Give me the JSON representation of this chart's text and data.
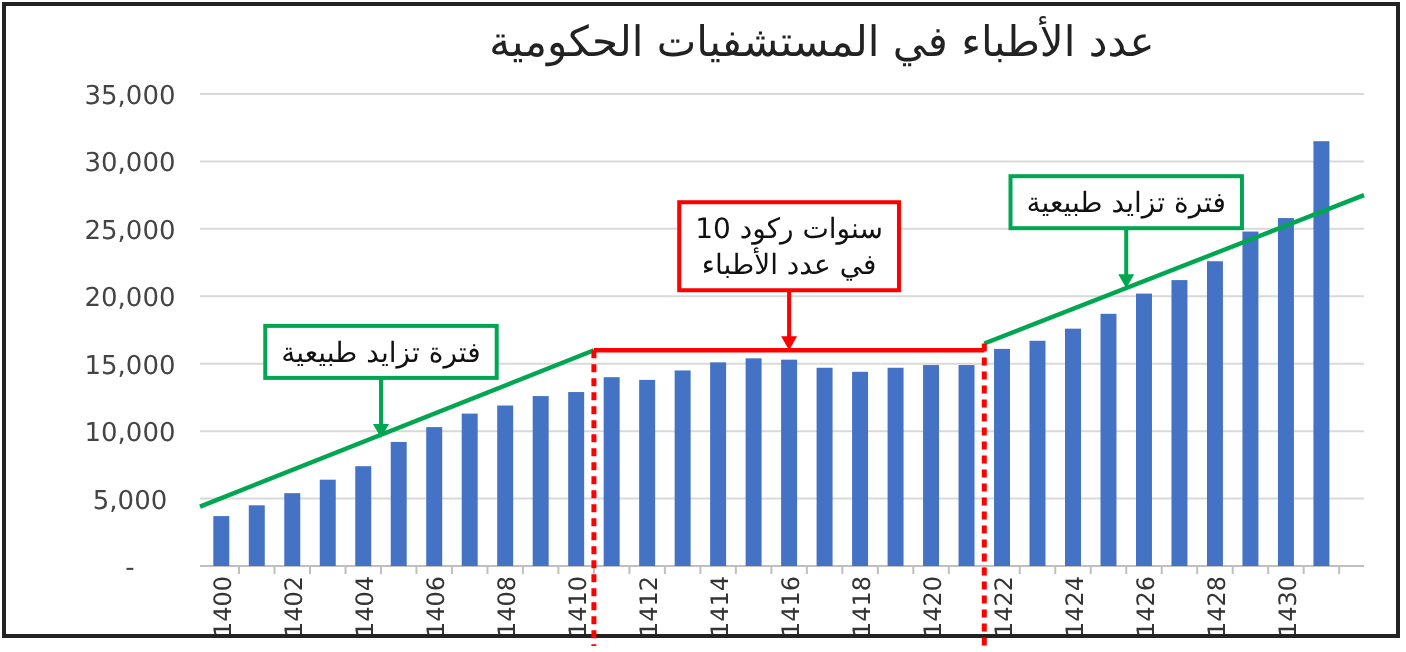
{
  "chart_data": {
    "type": "bar",
    "title": "عدد الأطباء في المستشفيات الحكومية",
    "x": [
      1400,
      1401,
      1402,
      1403,
      1404,
      1405,
      1406,
      1407,
      1408,
      1409,
      1410,
      1411,
      1412,
      1413,
      1414,
      1415,
      1416,
      1417,
      1418,
      1419,
      1420,
      1421,
      1422,
      1423,
      1424,
      1425,
      1426,
      1427,
      1428,
      1429,
      1430,
      1431
    ],
    "series": [
      {
        "color": "#4472c4",
        "values": [
          3700,
          4500,
          5400,
          6400,
          7400,
          9200,
          10300,
          11300,
          11900,
          12600,
          12900,
          14000,
          13800,
          14500,
          15100,
          15400,
          15300,
          14700,
          14400,
          14700,
          14900,
          14900,
          16100,
          16700,
          17600,
          18700,
          20200,
          21200,
          22600,
          24800,
          25800,
          31500
        ]
      },
      {
        "type": "line",
        "color": "#00a651",
        "x": [
          1399.4,
          1410.5
        ],
        "values": [
          4400,
          16000
        ]
      },
      {
        "type": "line",
        "color": "#ff0000",
        "x": [
          1410.5,
          1421.5
        ],
        "values": [
          16000,
          16000
        ]
      },
      {
        "type": "line",
        "color": "#00a651",
        "x": [
          1421.5,
          1432.2
        ],
        "values": [
          16500,
          27500
        ]
      }
    ],
    "xlim": [
      1399.4,
      1432.2
    ],
    "xticks": [
      1400,
      1402,
      1404,
      1406,
      1408,
      1410,
      1412,
      1414,
      1416,
      1418,
      1420,
      1422,
      1424,
      1426,
      1428,
      1430
    ],
    "ylim": [
      0,
      35000
    ],
    "yticks": [
      {
        "value": 0,
        "label": "-"
      },
      {
        "value": 5000,
        "label": "5,000"
      },
      {
        "value": 10000,
        "label": "10,000"
      },
      {
        "value": 15000,
        "label": "15,000"
      },
      {
        "value": 20000,
        "label": "20,000"
      },
      {
        "value": 25000,
        "label": "25,000"
      },
      {
        "value": 30000,
        "label": "30,000"
      },
      {
        "value": 35000,
        "label": "35,000"
      }
    ],
    "grid": "y",
    "ref_lines": [
      {
        "axis": "x",
        "value": 1410.5,
        "color": "#ff0000",
        "line_style": "dashed"
      },
      {
        "axis": "x",
        "value": 1421.5,
        "color": "#ff0000",
        "line_style": "dashed"
      }
    ],
    "annotations": [
      {
        "text": "فترة تزايد طبيعية",
        "x": 1404.5,
        "y": 9500
      },
      {
        "text": "10 سنوات ركود\nفي عدد الأطباء",
        "x": 1416,
        "y": 16000
      },
      {
        "text": "فترة تزايد طبيعية",
        "x": 1425.5,
        "y": 20600
      }
    ]
  }
}
